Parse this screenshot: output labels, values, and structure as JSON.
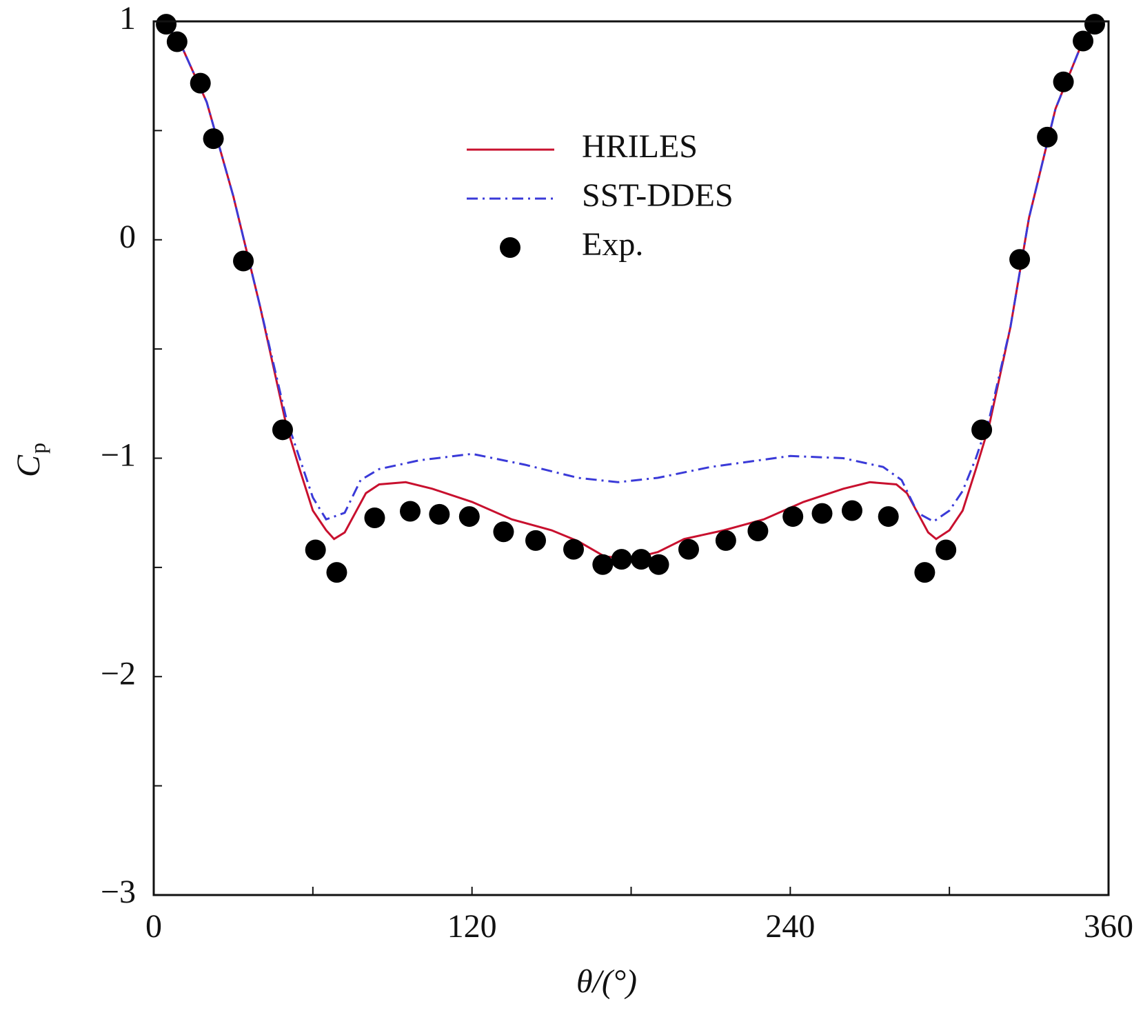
{
  "chart_data": {
    "type": "line",
    "xlabel": "θ/(°)",
    "ylabel": {
      "main": "C",
      "sub": "p"
    },
    "xlim": [
      0,
      360
    ],
    "xticks": [
      0,
      120,
      240,
      360
    ],
    "xticks_minor": [
      60,
      180,
      300
    ],
    "ylim": [
      -3,
      1
    ],
    "yticks": [
      {
        "value": -3,
        "label": "−3"
      },
      {
        "value": -2,
        "label": "−2"
      },
      {
        "value": -1,
        "label": "−1"
      },
      0,
      1
    ],
    "yticks_minor": [
      -2.5,
      -1.5,
      -0.5,
      0.5
    ],
    "legend": "upper center",
    "series": [
      {
        "name": "HRILES",
        "color": "#c8102e",
        "style": "solid",
        "x": [
          2,
          5,
          10,
          20,
          30,
          40,
          50,
          55,
          60,
          65,
          68,
          72,
          76,
          80,
          85,
          95,
          105,
          120,
          135,
          150,
          160,
          170,
          180,
          190,
          200,
          215,
          230,
          245,
          260,
          270,
          280,
          284,
          288,
          292,
          295,
          300,
          305,
          310,
          315,
          323,
          330,
          340,
          350,
          355
        ],
        "values": [
          1.0,
          0.98,
          0.9,
          0.63,
          0.2,
          -0.3,
          -0.85,
          -1.05,
          -1.24,
          -1.33,
          -1.37,
          -1.34,
          -1.25,
          -1.16,
          -1.12,
          -1.11,
          -1.14,
          -1.2,
          -1.28,
          -1.33,
          -1.38,
          -1.45,
          -1.46,
          -1.43,
          -1.37,
          -1.33,
          -1.28,
          -1.2,
          -1.14,
          -1.11,
          -1.12,
          -1.16,
          -1.25,
          -1.34,
          -1.37,
          -1.33,
          -1.24,
          -1.05,
          -0.85,
          -0.4,
          0.1,
          0.6,
          0.9,
          0.98
        ]
      },
      {
        "name": "SST-DDES",
        "color": "#3a3ad8",
        "style": "dashdot",
        "x": [
          2,
          5,
          10,
          20,
          30,
          40,
          50,
          55,
          60,
          65,
          72,
          78,
          85,
          100,
          120,
          140,
          160,
          175,
          190,
          210,
          240,
          260,
          275,
          282,
          288,
          294,
          300,
          305,
          310,
          315,
          323,
          330,
          340,
          350,
          355
        ],
        "values": [
          1.0,
          0.98,
          0.9,
          0.63,
          0.2,
          -0.3,
          -0.82,
          -1.0,
          -1.18,
          -1.28,
          -1.25,
          -1.1,
          -1.05,
          -1.01,
          -0.98,
          -1.03,
          -1.09,
          -1.11,
          -1.09,
          -1.04,
          -0.99,
          -1.0,
          -1.04,
          -1.1,
          -1.25,
          -1.29,
          -1.24,
          -1.15,
          -1.0,
          -0.82,
          -0.4,
          0.1,
          0.6,
          0.9,
          0.98
        ]
      },
      {
        "name": "Exp.",
        "color": "#000000",
        "style": "markers",
        "x": [
          4.7,
          8.8,
          17.6,
          22.5,
          33.8,
          48.6,
          61.0,
          69.0,
          83.3,
          96.7,
          107.7,
          119.0,
          131.9,
          144.0,
          158.3,
          169.3,
          176.4,
          183.8,
          190.4,
          201.7,
          215.7,
          227.8,
          241.0,
          252.0,
          263.3,
          277.0,
          290.7,
          298.7,
          312.2,
          326.5,
          336.9,
          343.0,
          350.4,
          354.8
        ],
        "values": [
          0.987,
          0.907,
          0.717,
          0.463,
          -0.097,
          -0.87,
          -1.42,
          -1.523,
          -1.273,
          -1.243,
          -1.257,
          -1.267,
          -1.337,
          -1.377,
          -1.417,
          -1.487,
          -1.463,
          -1.463,
          -1.487,
          -1.417,
          -1.377,
          -1.333,
          -1.267,
          -1.253,
          -1.24,
          -1.267,
          -1.523,
          -1.42,
          -0.87,
          -0.09,
          0.47,
          0.723,
          0.91,
          0.987
        ]
      }
    ]
  }
}
